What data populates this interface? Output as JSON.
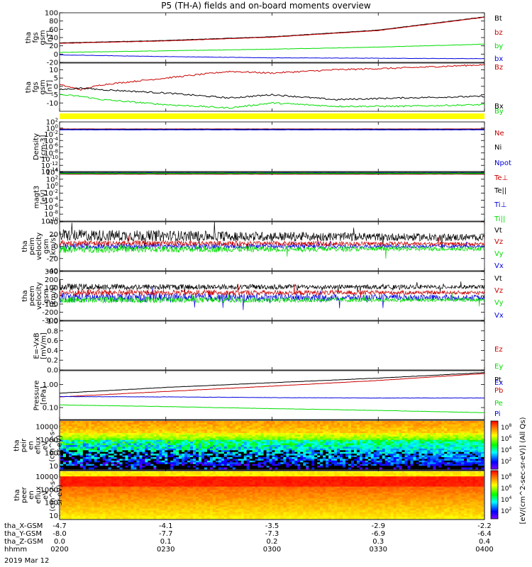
{
  "title": "P5 (TH-A) fields and on-board moments overview",
  "date": "2019 Mar 12",
  "xtick_labels": {
    "tha_X-GSM": [
      "-4.7",
      "-4.1",
      "-3.5",
      "-2.9",
      "-2.2"
    ],
    "tha_Y-GSM": [
      "-8.0",
      "-7.7",
      "-7.3",
      "-6.9",
      "-6.4"
    ],
    "tha_Z-GSM": [
      "0.0",
      "0.1",
      "0.2",
      "0.3",
      "0.4"
    ],
    "hhmm": [
      "0200",
      "0230",
      "0300",
      "0330",
      "0400"
    ]
  },
  "xrow_labels": [
    "tha_X-GSM",
    "tha_Y-GSM",
    "tha_Z-GSM",
    "hhmm"
  ],
  "colors": {
    "black": "#000000",
    "red": "#c80000",
    "green": "#00dd00",
    "blue": "#0000dd",
    "yellow": "#ffff00"
  },
  "colorbar": {
    "label": "[eV/(cm^2-sec-sr-eV)] (All Qs)",
    "ticks_upper": [
      "10^8",
      "10^6",
      "10^4",
      "10^2"
    ],
    "ticks_lower": [
      "10^8",
      "10^6",
      "10^4",
      "10^2"
    ]
  },
  "chart_data": [
    {
      "type": "line",
      "id": "fgs",
      "ylabel": [
        "tha",
        "fgs",
        "gsm",
        "[nT]"
      ],
      "ylim": [
        -20,
        100
      ],
      "yticks": [
        "100",
        "80",
        "60",
        "40",
        "20",
        "0",
        "-20"
      ],
      "x_hours": [
        2.0,
        2.5,
        3.0,
        3.5,
        4.0
      ],
      "series": [
        {
          "name": "Bt",
          "color": "#000000",
          "values": [
            27,
            33,
            42,
            58,
            90
          ]
        },
        {
          "name": "bz",
          "color": "#c80000",
          "values": [
            26,
            32,
            41,
            57,
            89
          ]
        },
        {
          "name": "by",
          "color": "#00dd00",
          "values": [
            4,
            8,
            12,
            17,
            24
          ]
        },
        {
          "name": "bx",
          "color": "#0000dd",
          "values": [
            -2,
            -6,
            -9,
            -10,
            -11
          ]
        }
      ]
    },
    {
      "type": "line",
      "id": "fgs-zoom",
      "ylabel": [
        "tha",
        "fgs",
        "gsm",
        "[nT]"
      ],
      "ylim": [
        -15,
        14
      ],
      "yticks": [
        "10",
        "5",
        "0",
        "-5",
        "-10"
      ],
      "x_hours": [
        2.0,
        2.1,
        2.2,
        2.5,
        2.8,
        3.0,
        3.3,
        3.6,
        4.0
      ],
      "series": [
        {
          "name": "Bz",
          "color": "#c80000",
          "values": [
            1,
            -2,
            1,
            5,
            9,
            8,
            10,
            11,
            13
          ]
        },
        {
          "name": "Bx",
          "color": "#000000",
          "values": [
            -2,
            -1,
            -2,
            -4,
            -7,
            -5,
            -8,
            -7,
            -6
          ]
        },
        {
          "name": "By",
          "color": "#00dd00",
          "values": [
            -5,
            -6,
            -8,
            -11,
            -13,
            -10,
            -12,
            -12,
            -11
          ]
        }
      ]
    },
    {
      "type": "line",
      "id": "density",
      "ylabel": [
        "Density",
        "[cm-3]"
      ],
      "ylim_exp": [
        -14,
        2
      ],
      "yticks": [
        "10^2",
        "10^0",
        "10^-2",
        "10^-4",
        "10^-6",
        "10^-8",
        "10^-10",
        "10^-12",
        "10^-14"
      ],
      "series": [
        {
          "name": "Ne",
          "color": "#c80000",
          "values": [
            0.5,
            0.5,
            0.5,
            0.5,
            0.5
          ]
        },
        {
          "name": "Ni",
          "color": "#000000",
          "values": [
            0.4,
            0.4,
            0.4,
            0.4,
            0.4
          ]
        },
        {
          "name": "Npot",
          "color": "#0000dd",
          "values": [
            0.3,
            0.3,
            0.3,
            0.3,
            0.3
          ]
        }
      ]
    },
    {
      "type": "line",
      "id": "temperature",
      "ylabel": [
        "magt3",
        "[eV]"
      ],
      "ylim_exp": [
        -10,
        4
      ],
      "yticks": [
        "10^4",
        "10^2",
        "10^0",
        "10^-2",
        "10^-4",
        "10^-6",
        "10^-8",
        "10^-10"
      ],
      "series": [
        {
          "name": "Te⊥",
          "color": "#c80000",
          "values": [
            3000,
            3000,
            3000,
            3000,
            3000
          ]
        },
        {
          "name": "Te||",
          "color": "#000000",
          "values": [
            4000,
            4000,
            4000,
            4000,
            4000
          ]
        },
        {
          "name": "Ti⊥",
          "color": "#0000dd",
          "values": [
            6000,
            6000,
            6000,
            6000,
            6000
          ]
        },
        {
          "name": "Ti||",
          "color": "#00dd00",
          "values": [
            5000,
            5000,
            5000,
            5000,
            5000
          ]
        }
      ]
    },
    {
      "type": "line",
      "id": "peim-velocity",
      "ylabel": [
        "tha",
        "peim",
        "velocity",
        "gsm",
        "[km/s]"
      ],
      "ylim": [
        -40,
        40
      ],
      "yticks": [
        "40",
        "20",
        "0",
        "-20",
        "-40"
      ],
      "series": [
        {
          "name": "Vt",
          "color": "#000000",
          "mean": 18,
          "noise": 10
        },
        {
          "name": "Vz",
          "color": "#c80000",
          "mean": 5,
          "noise": 5
        },
        {
          "name": "Vy",
          "color": "#00dd00",
          "mean": -5,
          "noise": 6
        },
        {
          "name": "Vx",
          "color": "#0000dd",
          "mean": 0,
          "noise": 5
        }
      ]
    },
    {
      "type": "line",
      "id": "peem-velocity",
      "ylabel": [
        "tha",
        "peem",
        "velocity",
        "gsm",
        "[km/s]"
      ],
      "ylim": [
        -300,
        300
      ],
      "yticks": [
        "300",
        "200",
        "100",
        "0",
        "-100",
        "-200",
        "-300"
      ],
      "series": [
        {
          "name": "Vt",
          "color": "#000000",
          "mean": 110,
          "noise": 40
        },
        {
          "name": "Vz",
          "color": "#c80000",
          "mean": 40,
          "noise": 40
        },
        {
          "name": "Vy",
          "color": "#00dd00",
          "mean": -50,
          "noise": 40
        },
        {
          "name": "Vx",
          "color": "#0000dd",
          "mean": -20,
          "noise": 60
        }
      ]
    },
    {
      "type": "line",
      "id": "efield",
      "ylabel": [
        "E=-VxB",
        "[mV/m]"
      ],
      "ylim": [
        0,
        1
      ],
      "yticks": [
        "1.0",
        "0.8",
        "0.6",
        "0.4",
        "0.2",
        "0.0"
      ],
      "series": [
        {
          "name": "Ez",
          "color": "#c80000",
          "values": []
        },
        {
          "name": "Ey",
          "color": "#00dd00",
          "values": []
        },
        {
          "name": "Ex",
          "color": "#0000dd",
          "values": []
        }
      ]
    },
    {
      "type": "line",
      "id": "pressure",
      "ylabel": [
        "Pressure",
        "[nPa]"
      ],
      "ylim_log": [
        0.03,
        4
      ],
      "yticks": [
        "1.00",
        "0.10"
      ],
      "x_hours": [
        2.0,
        2.5,
        3.0,
        3.5,
        4.0
      ],
      "series": [
        {
          "name": "Pt",
          "color": "#000000",
          "values": [
            0.42,
            0.75,
            1.2,
            1.9,
            3.3
          ]
        },
        {
          "name": "Pb",
          "color": "#c80000",
          "values": [
            0.29,
            0.5,
            0.85,
            1.5,
            3.0
          ]
        },
        {
          "name": "Pe",
          "color": "#00dd00",
          "values": [
            0.13,
            0.11,
            0.09,
            0.075,
            0.06
          ]
        },
        {
          "name": "Pi",
          "color": "#0000dd",
          "values": [
            0.3,
            0.29,
            0.27,
            0.26,
            0.26
          ]
        }
      ]
    },
    {
      "type": "heatmap",
      "id": "peir-spectrogram",
      "ylabel": [
        "tha",
        "peir",
        "en",
        "eflux",
        "eV",
        "(cm^2-s-",
        "sr-eV)"
      ],
      "yticks": [
        "10000",
        "1000",
        "100",
        "10"
      ],
      "ylim_log": [
        5,
        30000
      ]
    },
    {
      "type": "heatmap",
      "id": "peer-spectrogram",
      "ylabel": [
        "tha",
        "peer",
        "en",
        "eflux",
        "eV",
        "(cm^2-s-",
        "sr-eV)"
      ],
      "yticks": [
        "10000",
        "1000",
        "100",
        "10"
      ],
      "ylim_log": [
        5,
        30000
      ]
    }
  ]
}
